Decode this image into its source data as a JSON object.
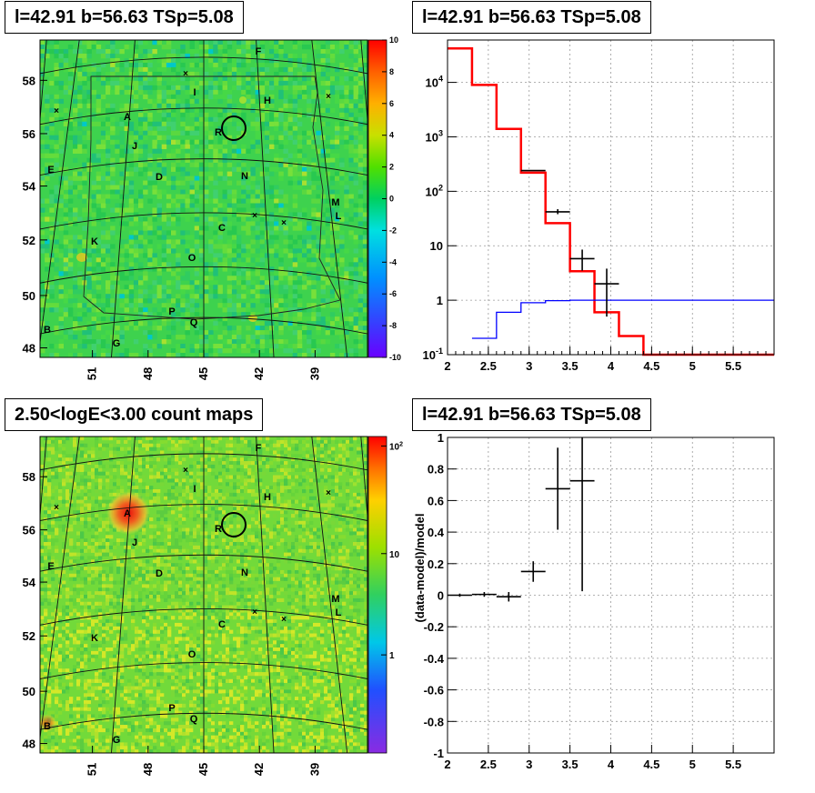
{
  "panels": {
    "top_left_title": "l=42.91 b=56.63 TSp=5.08",
    "top_right_title": "l=42.91 b=56.63 TSp=5.08",
    "bottom_left_title": "2.50<logE<3.00 count maps",
    "bottom_right_title": "l=42.91 b=56.63 TSp=5.08"
  },
  "chart_data": [
    {
      "type": "heatmap",
      "title": "l=42.91 b=56.63 TSp=5.08",
      "x_ticks": [
        "51",
        "48",
        "45",
        "42",
        "39"
      ],
      "y_ticks": [
        "58",
        "56",
        "54",
        "52",
        "50",
        "48"
      ],
      "colorbar_ticks": [
        "10",
        "8",
        "6",
        "4",
        "2",
        "0",
        "-2",
        "-4",
        "-6",
        "-8",
        "-10"
      ],
      "zlim": [
        -10,
        10
      ],
      "sources": [
        "A",
        "B",
        "C",
        "D",
        "E",
        "F",
        "G",
        "H",
        "I",
        "J",
        "K",
        "L",
        "M",
        "N",
        "O",
        "P",
        "Q",
        "R"
      ]
    },
    {
      "type": "line",
      "title": "l=42.91 b=56.63 TSp=5.08",
      "yscale": "log",
      "xlim": [
        2,
        6
      ],
      "ylim": [
        0.1,
        60000
      ],
      "x_ticks": [
        "2",
        "2.5",
        "3",
        "3.5",
        "4",
        "4.5",
        "5",
        "5.5"
      ],
      "y_ticks": [
        "10^-1",
        "1",
        "10",
        "10^2",
        "10^3",
        "10^4"
      ],
      "grid": true,
      "series": [
        {
          "color": "#ff0000",
          "edges": [
            2,
            2.3,
            2.6,
            2.9,
            3.2,
            3.5,
            3.8,
            4.1,
            4.4,
            6
          ],
          "values": [
            42000,
            9000,
            1400,
            220,
            26,
            3.4,
            0.6,
            0.22,
            0.1
          ]
        },
        {
          "color": "#0000ff",
          "edges": [
            2.3,
            2.6,
            2.9,
            3.2,
            3.5,
            6
          ],
          "values": [
            0.2,
            0.6,
            0.9,
            0.98,
            1.0
          ]
        },
        {
          "color": "#000000",
          "points": [
            {
              "x": 3.05,
              "y": 240,
              "xerr": 0.15
            },
            {
              "x": 3.35,
              "y": 42,
              "xerr": 0.15,
              "ylo": 38,
              "yhi": 47
            },
            {
              "x": 3.65,
              "y": 5.8,
              "xerr": 0.15,
              "ylo": 3.5,
              "yhi": 8.5
            },
            {
              "x": 3.95,
              "y": 2.0,
              "xerr": 0.15,
              "ylo": 0.5,
              "yhi": 3.8
            }
          ]
        }
      ]
    },
    {
      "type": "heatmap",
      "title": "2.50<logE<3.00 count maps",
      "x_ticks": [
        "51",
        "48",
        "45",
        "42",
        "39"
      ],
      "y_ticks": [
        "58",
        "56",
        "54",
        "52",
        "50",
        "48"
      ],
      "colorbar_ticks": [
        "10^2",
        "10",
        "1"
      ],
      "zscale": "log",
      "sources": [
        "A",
        "B",
        "C",
        "D",
        "E",
        "F",
        "G",
        "H",
        "I",
        "J",
        "K",
        "L",
        "M",
        "N",
        "O",
        "P",
        "Q",
        "R"
      ]
    },
    {
      "type": "scatter",
      "title": "l=42.91 b=56.63 TSp=5.08",
      "ylabel": "(data-model)/model",
      "xlim": [
        2,
        6
      ],
      "ylim": [
        -1,
        1
      ],
      "x_ticks": [
        "2",
        "2.5",
        "3",
        "3.5",
        "4",
        "4.5",
        "5",
        "5.5"
      ],
      "y_ticks": [
        "1",
        "0.8",
        "0.6",
        "0.4",
        "0.2",
        "0",
        "-0.2",
        "-0.4",
        "-0.6",
        "-0.8",
        "-1"
      ],
      "grid": true,
      "points": [
        {
          "x": 2.15,
          "y": 0.0,
          "xerr": 0.15,
          "yerr": 0.01
        },
        {
          "x": 2.45,
          "y": 0.005,
          "xerr": 0.15,
          "yerr": 0.015
        },
        {
          "x": 2.75,
          "y": -0.01,
          "xerr": 0.15,
          "yerr": 0.03
        },
        {
          "x": 3.05,
          "y": 0.15,
          "xerr": 0.15,
          "yerr": 0.065
        },
        {
          "x": 3.35,
          "y": 0.675,
          "xerr": 0.15,
          "yerr": 0.26
        },
        {
          "x": 3.65,
          "y": 0.725,
          "xerr": 0.15,
          "yerr": 0.7
        }
      ]
    }
  ]
}
